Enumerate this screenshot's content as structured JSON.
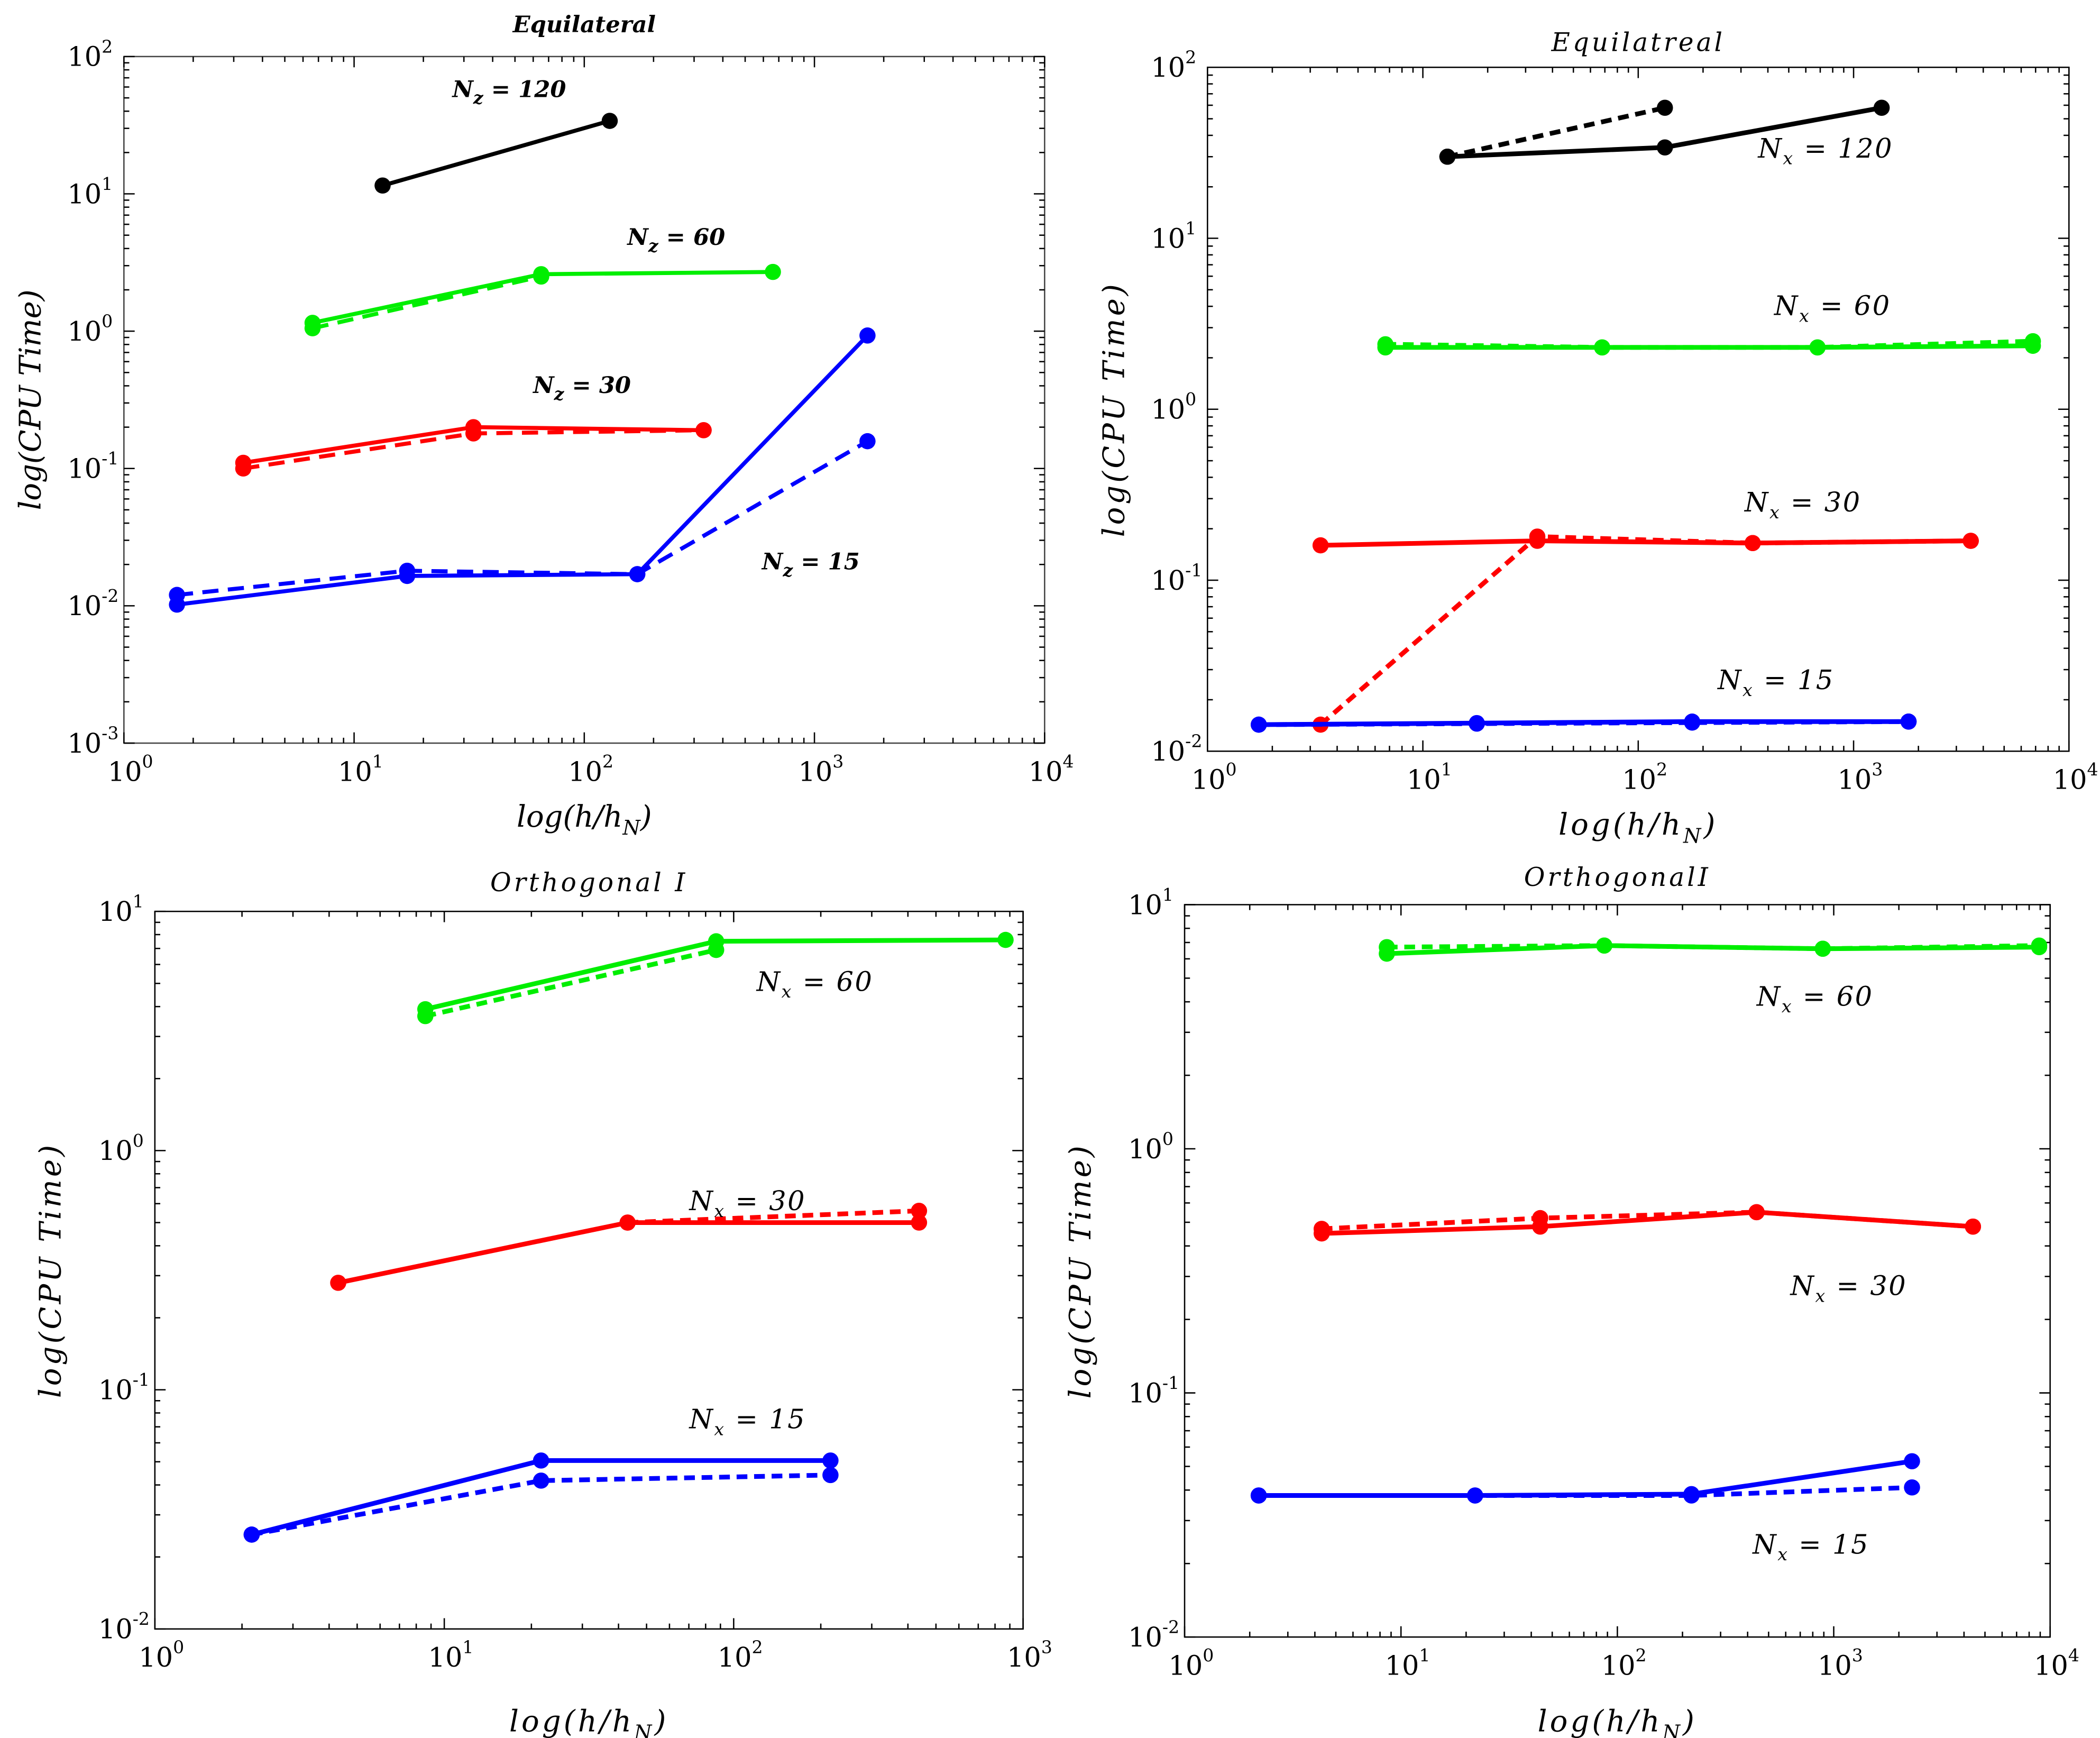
{
  "chart_data": [
    {
      "type": "line",
      "title": "Equilateral",
      "xlabel": {
        "pre": "log(h/h",
        "sub": "N",
        "post": ")"
      },
      "ylabel": "log(CPU Time)",
      "xscale": "log",
      "yscale": "log",
      "xlim": [
        1,
        10000
      ],
      "ylim": [
        0.001,
        100
      ],
      "xtick_exponents": [
        0,
        1,
        2,
        3,
        4
      ],
      "ytick_exponents": [
        -3,
        -2,
        -1,
        0,
        1,
        2
      ],
      "tick_base": "10",
      "series": [
        {
          "name": "Nz=120 solid",
          "color": "#000000",
          "style": "solid",
          "x": [
            13.3,
            129
          ],
          "y": [
            11.5,
            34
          ]
        },
        {
          "name": "Nz=60 solid",
          "color": "#00ee00",
          "style": "solid",
          "x": [
            6.6,
            65,
            660
          ],
          "y": [
            1.15,
            2.6,
            2.7
          ]
        },
        {
          "name": "Nz=60 dashed",
          "color": "#00ee00",
          "style": "dashed",
          "x": [
            6.6,
            65
          ],
          "y": [
            1.05,
            2.5
          ]
        },
        {
          "name": "Nz=30 solid",
          "color": "#ff0000",
          "style": "solid",
          "x": [
            3.3,
            33,
            330
          ],
          "y": [
            0.11,
            0.2,
            0.19
          ]
        },
        {
          "name": "Nz=30 dashed",
          "color": "#ff0000",
          "style": "dashed",
          "x": [
            3.3,
            33,
            330
          ],
          "y": [
            0.1,
            0.18,
            0.19
          ]
        },
        {
          "name": "Nz=15 solid",
          "color": "#0000ff",
          "style": "solid",
          "x": [
            1.7,
            17,
            170,
            1700
          ],
          "y": [
            0.0102,
            0.0165,
            0.017,
            0.93
          ]
        },
        {
          "name": "Nz=15 dashed",
          "color": "#0000ff",
          "style": "dashed",
          "x": [
            1.7,
            17,
            170,
            1700
          ],
          "y": [
            0.012,
            0.018,
            0.017,
            0.158
          ]
        }
      ],
      "annotations": [
        {
          "base": "N",
          "sub": "z",
          "rest": " = 120"
        },
        {
          "base": "N",
          "sub": "z",
          "rest": " = 60"
        },
        {
          "base": "N",
          "sub": "z",
          "rest": " = 30"
        },
        {
          "base": "N",
          "sub": "z",
          "rest": " = 15"
        }
      ]
    },
    {
      "type": "line",
      "title": "Equilatreal",
      "xlabel": {
        "pre": "log(h/h",
        "sub": "N",
        "post": ")"
      },
      "ylabel": "log(CPU Time)",
      "xscale": "log",
      "yscale": "log",
      "xlim": [
        1,
        10000
      ],
      "ylim": [
        0.01,
        100
      ],
      "xtick_exponents": [
        0,
        1,
        2,
        3,
        4
      ],
      "ytick_exponents": [
        -2,
        -1,
        0,
        1,
        2
      ],
      "tick_base": "10",
      "series": [
        {
          "name": "Nx=120 solid",
          "color": "#000000",
          "style": "solid",
          "x": [
            13,
            133,
            1350
          ],
          "y": [
            30,
            34,
            58
          ]
        },
        {
          "name": "Nx=120 dashed",
          "color": "#000000",
          "style": "dashed",
          "x": [
            13,
            133
          ],
          "y": [
            30,
            58
          ]
        },
        {
          "name": "Nx=60 solid",
          "color": "#00ee00",
          "style": "solid",
          "x": [
            6.7,
            68,
            680,
            6800
          ],
          "y": [
            2.3,
            2.3,
            2.3,
            2.35
          ]
        },
        {
          "name": "Nx=60 dashed",
          "color": "#00ee00",
          "style": "dashed",
          "x": [
            6.7,
            68,
            680,
            6800
          ],
          "y": [
            2.4,
            2.3,
            2.3,
            2.5
          ]
        },
        {
          "name": "Nx=30 solid",
          "color": "#ff0000",
          "style": "solid",
          "x": [
            3.35,
            34,
            340,
            3500
          ],
          "y": [
            0.16,
            0.17,
            0.165,
            0.17
          ]
        },
        {
          "name": "Nx=30 dashed",
          "color": "#ff0000",
          "style": "dashed",
          "x": [
            3.35,
            34,
            340,
            3500
          ],
          "y": [
            0.0143,
            0.18,
            0.165,
            0.17
          ]
        },
        {
          "name": "Nx=15 solid",
          "color": "#0000ff",
          "style": "solid",
          "x": [
            1.73,
            17.8,
            178,
            1800
          ],
          "y": [
            0.0143,
            0.0146,
            0.0149,
            0.0149
          ]
        },
        {
          "name": "Nx=15 dashed",
          "color": "#0000ff",
          "style": "dashed",
          "x": [
            1.73,
            17.8,
            178,
            1800
          ],
          "y": [
            0.0143,
            0.0145,
            0.0147,
            0.0149
          ]
        }
      ],
      "annotations": [
        {
          "base": "N",
          "sub": "x",
          "rest": " = 120"
        },
        {
          "base": "N",
          "sub": "x",
          "rest": " = 60"
        },
        {
          "base": "N",
          "sub": "x",
          "rest": " = 30"
        },
        {
          "base": "N",
          "sub": "x",
          "rest": " = 15"
        }
      ]
    },
    {
      "type": "line",
      "title": "Orthogonal I",
      "xlabel": {
        "pre": "log(h/h",
        "sub": "N",
        "post": ")"
      },
      "ylabel": "log(CPU Time)",
      "xscale": "log",
      "yscale": "log",
      "xlim": [
        1,
        1000
      ],
      "ylim": [
        0.01,
        10
      ],
      "xtick_exponents": [
        0,
        1,
        2,
        3
      ],
      "ytick_exponents": [
        -2,
        -1,
        0,
        1
      ],
      "tick_base": "10",
      "series": [
        {
          "name": "Nx=60 solid",
          "color": "#00ee00",
          "style": "solid",
          "x": [
            8.6,
            87,
            870
          ],
          "y": [
            3.9,
            7.5,
            7.6
          ]
        },
        {
          "name": "Nx=60 dashed",
          "color": "#00ee00",
          "style": "dashed",
          "x": [
            8.6,
            87
          ],
          "y": [
            3.65,
            6.9
          ]
        },
        {
          "name": "Nx=30 solid",
          "color": "#ff0000",
          "style": "solid",
          "x": [
            4.3,
            43,
            437
          ],
          "y": [
            0.28,
            0.5,
            0.5
          ]
        },
        {
          "name": "Nx=30 dashed",
          "color": "#ff0000",
          "style": "dashed",
          "x": [
            43,
            437
          ],
          "y": [
            0.5,
            0.56
          ]
        },
        {
          "name": "Nx=15 solid",
          "color": "#0000ff",
          "style": "solid",
          "x": [
            2.16,
            21.6,
            216
          ],
          "y": [
            0.0248,
            0.0506,
            0.0506
          ]
        },
        {
          "name": "Nx=15 dashed",
          "color": "#0000ff",
          "style": "dashed",
          "x": [
            2.16,
            21.6,
            216
          ],
          "y": [
            0.0248,
            0.0417,
            0.044
          ]
        }
      ],
      "annotations": [
        {
          "base": "N",
          "sub": "x",
          "rest": " = 60"
        },
        {
          "base": "N",
          "sub": "x",
          "rest": " = 30"
        },
        {
          "base": "N",
          "sub": "x",
          "rest": " = 15"
        }
      ]
    },
    {
      "type": "line",
      "title": "OrthogonalI",
      "xlabel": {
        "pre": "log(h/h",
        "sub": "N",
        "post": ")"
      },
      "ylabel": "log(CPU Time)",
      "xscale": "log",
      "yscale": "log",
      "xlim": [
        1,
        10000
      ],
      "ylim": [
        0.01,
        10
      ],
      "xtick_exponents": [
        0,
        1,
        2,
        3,
        4
      ],
      "ytick_exponents": [
        -2,
        -1,
        0,
        1
      ],
      "tick_base": "10",
      "series": [
        {
          "name": "Nx=60 solid",
          "color": "#00ee00",
          "style": "solid",
          "x": [
            8.6,
            87,
            890,
            8900
          ],
          "y": [
            6.3,
            6.8,
            6.6,
            6.7
          ]
        },
        {
          "name": "Nx=60 dashed",
          "color": "#00ee00",
          "style": "dashed",
          "x": [
            8.6,
            87,
            890,
            8900
          ],
          "y": [
            6.7,
            6.8,
            6.6,
            6.8
          ]
        },
        {
          "name": "Nx=30 solid",
          "color": "#ff0000",
          "style": "solid",
          "x": [
            4.3,
            44,
            440,
            4400
          ],
          "y": [
            0.45,
            0.48,
            0.55,
            0.48
          ]
        },
        {
          "name": "Nx=30 dashed",
          "color": "#ff0000",
          "style": "dashed",
          "x": [
            4.3,
            44,
            440,
            4400
          ],
          "y": [
            0.47,
            0.52,
            0.55,
            0.48
          ]
        },
        {
          "name": "Nx=15 solid",
          "color": "#0000ff",
          "style": "solid",
          "x": [
            2.2,
            22,
            220,
            2300
          ],
          "y": [
            0.038,
            0.038,
            0.0385,
            0.0525
          ]
        },
        {
          "name": "Nx=15 dashed",
          "color": "#0000ff",
          "style": "dashed",
          "x": [
            2.2,
            22,
            220,
            2300
          ],
          "y": [
            0.038,
            0.038,
            0.038,
            0.041
          ]
        }
      ],
      "annotations": [
        {
          "base": "N",
          "sub": "x",
          "rest": " = 60"
        },
        {
          "base": "N",
          "sub": "x",
          "rest": " = 30"
        },
        {
          "base": "N",
          "sub": "x",
          "rest": " = 15"
        }
      ]
    }
  ]
}
